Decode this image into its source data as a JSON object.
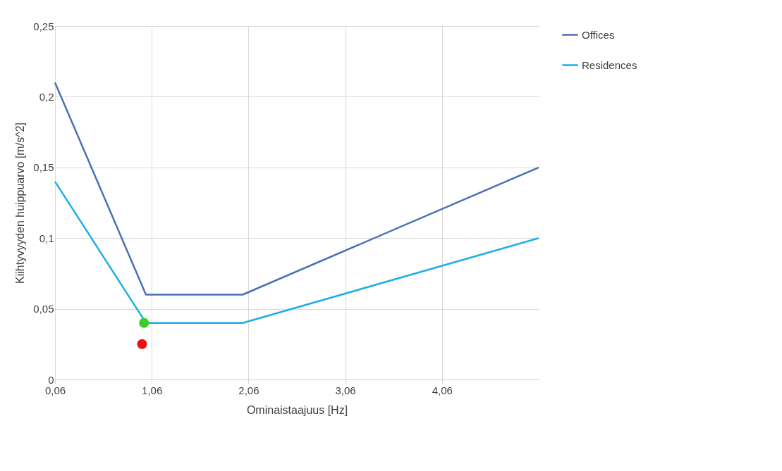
{
  "chart_data": {
    "type": "line",
    "xlabel": "Ominaistaajuus [Hz]",
    "ylabel": "Kiihtyvyyden huippuarvo [m/s^2]",
    "series": [
      {
        "name": "Offices",
        "color": "#4a6fb5",
        "x": [
          0.06,
          1.0,
          2.0,
          5.06
        ],
        "values": [
          0.21,
          0.06,
          0.06,
          0.15
        ]
      },
      {
        "name": "Residences",
        "color": "#19aeea",
        "x": [
          0.06,
          1.0,
          2.0,
          5.06
        ],
        "values": [
          0.14,
          0.04,
          0.04,
          0.1
        ]
      },
      {
        "type": "scatter",
        "color": "#3ccc2c",
        "x": [
          0.98
        ],
        "values": [
          0.04
        ],
        "marker": "circle"
      },
      {
        "type": "scatter",
        "color": "#f01010",
        "x": [
          0.96
        ],
        "values": [
          0.025
        ],
        "marker": "circle"
      }
    ],
    "xlim": [
      0.06,
      5.06
    ],
    "ylim": [
      0,
      0.25
    ],
    "xticks": [
      {
        "value": 0.06,
        "label": "0,06"
      },
      {
        "value": 1.06,
        "label": "1,06"
      },
      {
        "value": 2.06,
        "label": "2,06"
      },
      {
        "value": 3.06,
        "label": "3,06"
      },
      {
        "value": 4.06,
        "label": "4,06"
      }
    ],
    "yticks": [
      0,
      {
        "value": 0.05,
        "label": "0,05"
      },
      {
        "value": 0.1,
        "label": "0,1"
      },
      {
        "value": 0.15,
        "label": "0,15"
      },
      {
        "value": 0.2,
        "label": "0,2"
      },
      {
        "value": 0.25,
        "label": "0,25"
      }
    ],
    "grid": true,
    "legend": "right",
    "marker": "none",
    "line_style": "solid"
  }
}
